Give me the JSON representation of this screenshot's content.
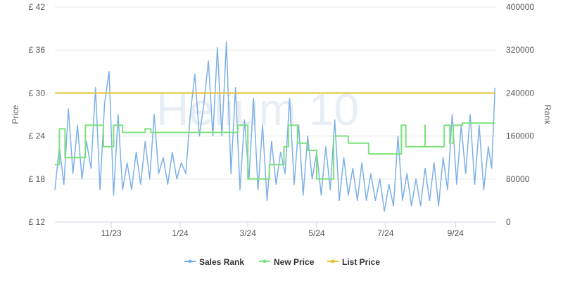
{
  "chart_data": {
    "type": "line",
    "watermark": "Helium 10",
    "y_left": {
      "label": "Price",
      "ticks": [
        "£ 12",
        "£ 18",
        "£ 24",
        "£ 30",
        "£ 36",
        "£ 42"
      ],
      "tick_values": [
        12,
        18,
        24,
        30,
        36,
        42
      ],
      "range": [
        12,
        42
      ]
    },
    "y_right": {
      "label": "Rank",
      "ticks": [
        "0",
        "80000",
        "160000",
        "240000",
        "320000",
        "400000"
      ],
      "tick_values": [
        0,
        80000,
        160000,
        240000,
        320000,
        400000
      ],
      "range": [
        0,
        400000
      ]
    },
    "x_axis": {
      "range": [
        "2023-09-12",
        "2024-10-07"
      ],
      "ticks": [
        "11/23",
        "1/24",
        "3/24",
        "5/24",
        "7/24",
        "9/24"
      ],
      "tick_dates": [
        "2023-11-01",
        "2024-01-01",
        "2024-03-01",
        "2024-05-01",
        "2024-07-01",
        "2024-09-01"
      ]
    },
    "grid": true,
    "legend_position": "bottom-center",
    "series": [
      {
        "name": "Sales Rank",
        "axis": "right",
        "color": "#7cb0e8",
        "points": [
          [
            "2023-09-12",
            60000
          ],
          [
            "2023-09-16",
            140000
          ],
          [
            "2023-09-20",
            70000
          ],
          [
            "2023-09-24",
            210000
          ],
          [
            "2023-09-28",
            90000
          ],
          [
            "2023-10-02",
            180000
          ],
          [
            "2023-10-06",
            80000
          ],
          [
            "2023-10-10",
            150000
          ],
          [
            "2023-10-14",
            100000
          ],
          [
            "2023-10-18",
            250000
          ],
          [
            "2023-10-22",
            60000
          ],
          [
            "2023-10-26",
            220000
          ],
          [
            "2023-10-30",
            280000
          ],
          [
            "2023-11-03",
            50000
          ],
          [
            "2023-11-07",
            200000
          ],
          [
            "2023-11-11",
            60000
          ],
          [
            "2023-11-15",
            110000
          ],
          [
            "2023-11-19",
            60000
          ],
          [
            "2023-11-23",
            130000
          ],
          [
            "2023-11-27",
            70000
          ],
          [
            "2023-12-01",
            150000
          ],
          [
            "2023-12-05",
            80000
          ],
          [
            "2023-12-09",
            200000
          ],
          [
            "2023-12-13",
            90000
          ],
          [
            "2023-12-17",
            120000
          ],
          [
            "2023-12-21",
            70000
          ],
          [
            "2023-12-25",
            130000
          ],
          [
            "2023-12-29",
            80000
          ],
          [
            "2024-01-02",
            110000
          ],
          [
            "2024-01-06",
            90000
          ],
          [
            "2024-01-10",
            200000
          ],
          [
            "2024-01-14",
            275000
          ],
          [
            "2024-01-18",
            160000
          ],
          [
            "2024-01-22",
            220000
          ],
          [
            "2024-01-26",
            300000
          ],
          [
            "2024-01-30",
            160000
          ],
          [
            "2024-02-03",
            325000
          ],
          [
            "2024-02-07",
            160000
          ],
          [
            "2024-02-11",
            335000
          ],
          [
            "2024-02-15",
            90000
          ],
          [
            "2024-02-19",
            250000
          ],
          [
            "2024-02-23",
            60000
          ],
          [
            "2024-02-27",
            190000
          ],
          [
            "2024-03-02",
            80000
          ],
          [
            "2024-03-06",
            230000
          ],
          [
            "2024-03-10",
            60000
          ],
          [
            "2024-03-14",
            180000
          ],
          [
            "2024-03-18",
            40000
          ],
          [
            "2024-03-22",
            150000
          ],
          [
            "2024-03-26",
            70000
          ],
          [
            "2024-03-30",
            130000
          ],
          [
            "2024-04-03",
            90000
          ],
          [
            "2024-04-07",
            230000
          ],
          [
            "2024-04-11",
            70000
          ],
          [
            "2024-04-15",
            180000
          ],
          [
            "2024-04-19",
            50000
          ],
          [
            "2024-04-23",
            160000
          ],
          [
            "2024-04-27",
            80000
          ],
          [
            "2024-05-01",
            130000
          ],
          [
            "2024-05-05",
            50000
          ],
          [
            "2024-05-09",
            140000
          ],
          [
            "2024-05-13",
            60000
          ],
          [
            "2024-05-17",
            190000
          ],
          [
            "2024-05-21",
            40000
          ],
          [
            "2024-05-25",
            120000
          ],
          [
            "2024-05-29",
            50000
          ],
          [
            "2024-06-02",
            100000
          ],
          [
            "2024-06-06",
            40000
          ],
          [
            "2024-06-10",
            110000
          ],
          [
            "2024-06-14",
            40000
          ],
          [
            "2024-06-18",
            90000
          ],
          [
            "2024-06-22",
            40000
          ],
          [
            "2024-06-26",
            80000
          ],
          [
            "2024-06-30",
            20000
          ],
          [
            "2024-07-04",
            70000
          ],
          [
            "2024-07-08",
            30000
          ],
          [
            "2024-07-12",
            160000
          ],
          [
            "2024-07-16",
            40000
          ],
          [
            "2024-07-20",
            90000
          ],
          [
            "2024-07-24",
            30000
          ],
          [
            "2024-07-28",
            80000
          ],
          [
            "2024-08-01",
            30000
          ],
          [
            "2024-08-05",
            100000
          ],
          [
            "2024-08-09",
            40000
          ],
          [
            "2024-08-13",
            110000
          ],
          [
            "2024-08-17",
            30000
          ],
          [
            "2024-08-21",
            120000
          ],
          [
            "2024-08-25",
            60000
          ],
          [
            "2024-08-29",
            200000
          ],
          [
            "2024-09-02",
            70000
          ],
          [
            "2024-09-06",
            180000
          ],
          [
            "2024-09-10",
            90000
          ],
          [
            "2024-09-14",
            200000
          ],
          [
            "2024-09-18",
            70000
          ],
          [
            "2024-09-22",
            180000
          ],
          [
            "2024-09-26",
            60000
          ],
          [
            "2024-09-30",
            140000
          ],
          [
            "2024-10-03",
            100000
          ],
          [
            "2024-10-06",
            250000
          ]
        ]
      },
      {
        "name": "New Price",
        "axis": "left",
        "color": "#7be27b",
        "points": [
          [
            "2023-09-12",
            20
          ],
          [
            "2023-09-16",
            20
          ],
          [
            "2023-09-16",
            25
          ],
          [
            "2023-09-21",
            25
          ],
          [
            "2023-09-21",
            21
          ],
          [
            "2023-10-09",
            21
          ],
          [
            "2023-10-09",
            25.5
          ],
          [
            "2023-10-25",
            25.5
          ],
          [
            "2023-10-25",
            22.5
          ],
          [
            "2023-11-03",
            22.5
          ],
          [
            "2023-11-03",
            25.5
          ],
          [
            "2023-11-11",
            25.5
          ],
          [
            "2023-11-11",
            24.5
          ],
          [
            "2023-12-01",
            24.5
          ],
          [
            "2023-12-01",
            25
          ],
          [
            "2023-12-06",
            25
          ],
          [
            "2023-12-06",
            24.5
          ],
          [
            "2024-02-21",
            24.5
          ],
          [
            "2024-02-21",
            25.5
          ],
          [
            "2024-03-01",
            25.5
          ],
          [
            "2024-03-01",
            18
          ],
          [
            "2024-03-20",
            18
          ],
          [
            "2024-03-20",
            20
          ],
          [
            "2024-04-02",
            20
          ],
          [
            "2024-04-02",
            22.5
          ],
          [
            "2024-04-06",
            22.5
          ],
          [
            "2024-04-06",
            25.5
          ],
          [
            "2024-04-14",
            25.5
          ],
          [
            "2024-04-14",
            23
          ],
          [
            "2024-04-23",
            23
          ],
          [
            "2024-04-23",
            22
          ],
          [
            "2024-05-01",
            22
          ],
          [
            "2024-05-01",
            18
          ],
          [
            "2024-05-16",
            18
          ],
          [
            "2024-05-16",
            24
          ],
          [
            "2024-05-29",
            24
          ],
          [
            "2024-05-29",
            23
          ],
          [
            "2024-06-16",
            23
          ],
          [
            "2024-06-16",
            21.5
          ],
          [
            "2024-07-15",
            21.5
          ],
          [
            "2024-07-15",
            25.5
          ],
          [
            "2024-07-19",
            25.5
          ],
          [
            "2024-07-19",
            22.5
          ],
          [
            "2024-08-05",
            22.5
          ],
          [
            "2024-08-05",
            25.5
          ],
          [
            "2024-08-05",
            22.5
          ],
          [
            "2024-08-22",
            22.5
          ],
          [
            "2024-08-22",
            25.5
          ],
          [
            "2024-08-27",
            25.5
          ],
          [
            "2024-08-27",
            23
          ],
          [
            "2024-08-30",
            23
          ],
          [
            "2024-08-30",
            25.5
          ],
          [
            "2024-09-07",
            25.5
          ],
          [
            "2024-09-07",
            25.8
          ],
          [
            "2024-10-06",
            25.8
          ]
        ]
      },
      {
        "name": "List Price",
        "axis": "left",
        "color": "#e3c12f",
        "points": [
          [
            "2023-09-12",
            30
          ],
          [
            "2024-10-06",
            30
          ]
        ]
      }
    ]
  }
}
